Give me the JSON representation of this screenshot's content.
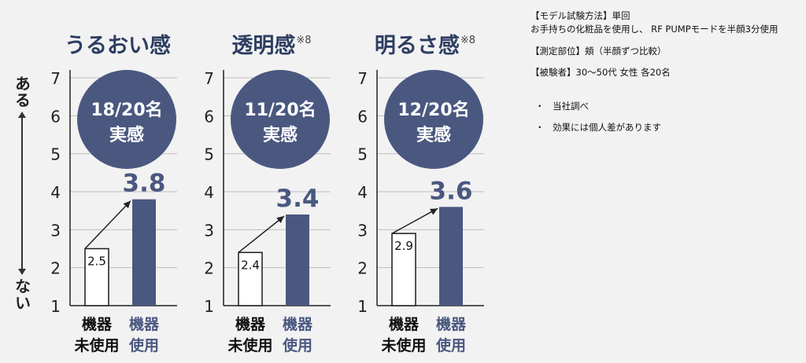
{
  "y_caption": {
    "top": "ある",
    "bottom": "ない"
  },
  "colors": {
    "navy": "#4a5880",
    "title": "#2e3e62",
    "bar_outline": "#1a1a1a",
    "grid": "#bdbdbd"
  },
  "chart_data": [
    {
      "type": "bar",
      "title": "うるおい感",
      "title_note": "",
      "categories": [
        "機器\n未使用",
        "機器\n使用"
      ],
      "category_lines": [
        [
          "機器",
          "未使用"
        ],
        [
          "機器",
          "使用"
        ]
      ],
      "values": [
        2.5,
        3.8
      ],
      "value_labels": [
        "2.5",
        "3.8"
      ],
      "yticks": [
        1,
        2,
        3,
        4,
        5,
        6,
        7
      ],
      "ylim": [
        1,
        7
      ],
      "grid": true,
      "badge": [
        "18/20名",
        "実感"
      ]
    },
    {
      "type": "bar",
      "title": "透明感",
      "title_note": "※8",
      "categories": [
        "機器\n未使用",
        "機器\n使用"
      ],
      "category_lines": [
        [
          "機器",
          "未使用"
        ],
        [
          "機器",
          "使用"
        ]
      ],
      "values": [
        2.4,
        3.4
      ],
      "value_labels": [
        "2.4",
        "3.4"
      ],
      "yticks": [
        1,
        2,
        3,
        4,
        5,
        6,
        7
      ],
      "ylim": [
        1,
        7
      ],
      "grid": true,
      "badge": [
        "11/20名",
        "実感"
      ]
    },
    {
      "type": "bar",
      "title": "明るさ感",
      "title_note": "※8",
      "categories": [
        "機器\n未使用",
        "機器\n使用"
      ],
      "category_lines": [
        [
          "機器",
          "未使用"
        ],
        [
          "機器",
          "使用"
        ]
      ],
      "values": [
        2.9,
        3.6
      ],
      "value_labels": [
        "2.9",
        "3.6"
      ],
      "yticks": [
        1,
        2,
        3,
        4,
        5,
        6,
        7
      ],
      "ylim": [
        1,
        7
      ],
      "grid": true,
      "badge": [
        "12/20名",
        "実感"
      ]
    }
  ],
  "notes": {
    "method_heading": "【モデル試験方法】単回",
    "method_detail": "お手持ちの化粧品を使用し、 RF PUMPモードを半顔3分使用",
    "site": "【測定部位】頬（半顔ずつ比較）",
    "subjects": "【被験者】30〜50代 女性 各20名",
    "bullets": [
      "当社調べ",
      "効果には個人差があります"
    ]
  }
}
